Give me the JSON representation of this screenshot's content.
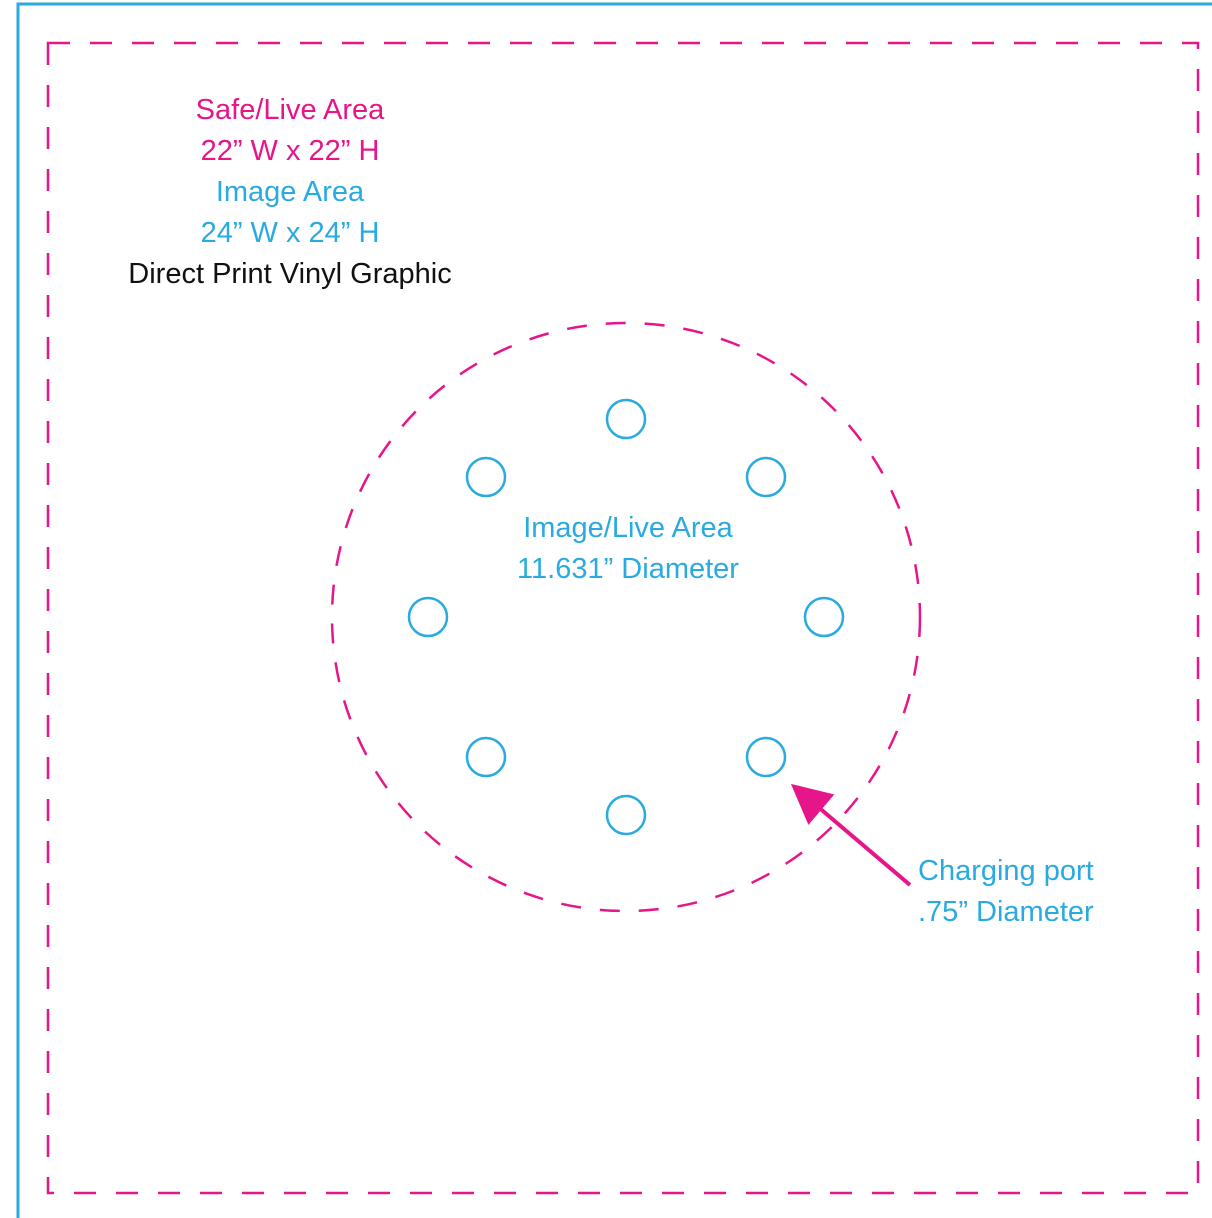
{
  "colors": {
    "image_area": "#29aae1",
    "safe_area": "#e6158a",
    "text_dark": "#111111"
  },
  "spec": {
    "safe_title": "Safe/Live Area",
    "safe_size": "22” W x 22” H",
    "image_title": "Image Area",
    "image_size": "24” W x 24” H",
    "product": "Direct Print Vinyl Graphic"
  },
  "circle": {
    "title": "Image/Live Area",
    "diameter": "11.631” Diameter",
    "port_count": 8
  },
  "port": {
    "title": "Charging port",
    "diameter": ".75” Diameter"
  }
}
